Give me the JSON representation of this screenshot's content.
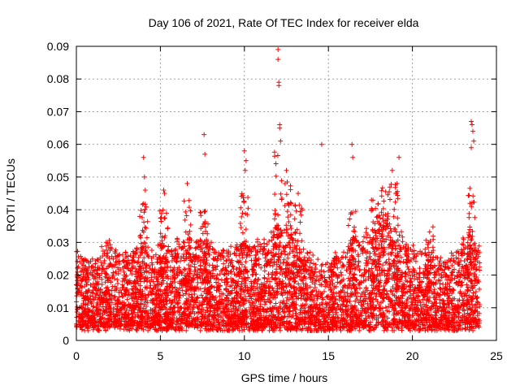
{
  "chart_data": {
    "type": "scatter",
    "title": "Day 106 of 2021, Rate Of TEC Index for receiver elda",
    "xlabel": "GPS time / hours",
    "ylabel": "ROTI / TECUs",
    "xlim": [
      0,
      25
    ],
    "ylim": [
      0,
      0.09
    ],
    "x_ticks": [
      "0",
      "5",
      "10",
      "15",
      "20",
      "25"
    ],
    "y_ticks": [
      "0",
      "0.01",
      "0.02",
      "0.03",
      "0.04",
      "0.05",
      "0.06",
      "0.07",
      "0.08",
      "0.09"
    ],
    "grid": true,
    "marker": "+",
    "series_color": "#ff0000",
    "series": [
      {
        "envelope_note_x": [
          0.0,
          0.5,
          1.0,
          1.5,
          2.0,
          2.5,
          3.0,
          3.5,
          4.0,
          4.5,
          5.0,
          5.5,
          6.0,
          6.5,
          7.0,
          7.5,
          8.0,
          8.5,
          9.0,
          9.5,
          10.0,
          10.5,
          11.0,
          11.5,
          12.0,
          12.5,
          13.0,
          13.5,
          14.0,
          14.5,
          15.0,
          15.5,
          16.0,
          16.5,
          17.0,
          17.5,
          18.0,
          18.5,
          19.0,
          19.5,
          20.0,
          20.5,
          21.0,
          21.5,
          22.0,
          22.5,
          23.0,
          23.5,
          24.0
        ],
        "typical_upper": [
          0.028,
          0.026,
          0.024,
          0.028,
          0.03,
          0.028,
          0.026,
          0.028,
          0.03,
          0.027,
          0.029,
          0.028,
          0.03,
          0.031,
          0.03,
          0.032,
          0.03,
          0.028,
          0.027,
          0.029,
          0.031,
          0.031,
          0.03,
          0.032,
          0.036,
          0.033,
          0.03,
          0.028,
          0.027,
          0.025,
          0.024,
          0.026,
          0.028,
          0.031,
          0.033,
          0.034,
          0.037,
          0.038,
          0.034,
          0.031,
          0.029,
          0.027,
          0.026,
          0.025,
          0.025,
          0.027,
          0.03,
          0.034,
          0.028
        ],
        "outliers_x": [
          4.0,
          4.05,
          4.1,
          5.2,
          5.25,
          6.6,
          7.6,
          7.65,
          10.0,
          10.05,
          10.1,
          12.0,
          12.0,
          12.05,
          12.05,
          12.1,
          12.1,
          12.15,
          12.5,
          13.2,
          14.6,
          16.4,
          16.45,
          18.8,
          19.2,
          23.5,
          23.55,
          23.6,
          23.65,
          23.5
        ],
        "outliers_y": [
          0.056,
          0.05,
          0.046,
          0.046,
          0.045,
          0.048,
          0.063,
          0.057,
          0.058,
          0.052,
          0.055,
          0.089,
          0.086,
          0.079,
          0.078,
          0.066,
          0.065,
          0.061,
          0.052,
          0.045,
          0.06,
          0.06,
          0.056,
          0.052,
          0.056,
          0.067,
          0.066,
          0.064,
          0.061,
          0.059
        ]
      }
    ]
  }
}
